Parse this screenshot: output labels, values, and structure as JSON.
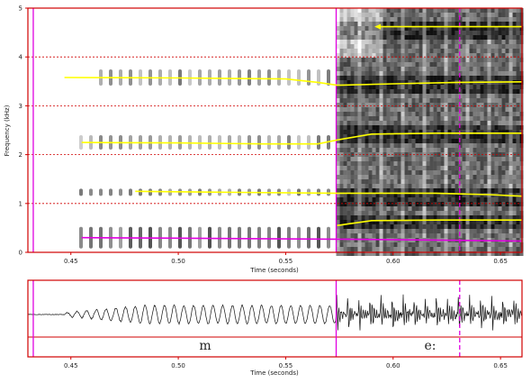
{
  "spectrogram": {
    "ylabel": "Frequency (kHz)",
    "xlabel": "Time (seconds)",
    "y_ticks": [
      "0",
      "1",
      "2",
      "3",
      "4",
      "5"
    ],
    "x_ticks": [
      "0.45",
      "0.50",
      "0.55",
      "0.60",
      "0.65"
    ]
  },
  "waveform": {
    "xlabel": "Time (seconds)",
    "x_ticks": [
      "0.45",
      "0.50",
      "0.55",
      "0.60",
      "0.65"
    ],
    "segments": [
      "m",
      "e:"
    ]
  },
  "colors": {
    "frame": "#d00000",
    "boundary": "#e000e0",
    "formant": "#ffff00",
    "f0": "#e000e0",
    "gridline": "#d00000"
  },
  "chart_data": [
    {
      "type": "line",
      "x_unit": "seconds",
      "y_unit": "kHz",
      "xlim": [
        0.43,
        0.66
      ],
      "ylim": [
        0,
        5
      ],
      "grid": true,
      "boundaries": [
        0.4325,
        0.5735,
        0.631
      ],
      "series": [
        {
          "x": [
            0.447,
            0.5,
            0.55,
            0.565,
            0.574,
            0.6,
            0.63,
            0.66
          ],
          "y": [
            3.58,
            3.57,
            3.55,
            3.48,
            3.42,
            3.45,
            3.48,
            3.49
          ]
        },
        {
          "x": [
            0.455,
            0.5,
            0.54,
            0.565,
            0.574,
            0.59,
            0.62,
            0.66
          ],
          "y": [
            2.25,
            2.24,
            2.22,
            2.22,
            2.3,
            2.42,
            2.44,
            2.44
          ]
        },
        {
          "x": [
            0.48,
            0.52,
            0.574,
            0.62,
            0.645,
            0.66
          ],
          "y": [
            1.25,
            1.23,
            1.21,
            1.21,
            1.18,
            1.15
          ]
        },
        {
          "x": [
            0.574,
            0.59,
            0.62,
            0.66
          ],
          "y": [
            0.55,
            0.65,
            0.66,
            0.66
          ]
        },
        {
          "x": [
            0.593,
            0.62,
            0.66
          ],
          "y": [
            4.62,
            4.62,
            4.62
          ]
        },
        {
          "x": [
            0.455,
            0.5,
            0.574,
            0.62,
            0.66
          ],
          "y": [
            0.3,
            0.29,
            0.27,
            0.25,
            0.23
          ]
        }
      ]
    },
    {
      "type": "line",
      "x_unit": "seconds",
      "xlim": [
        0.43,
        0.66
      ],
      "segments": [
        {
          "label": "m",
          "start": 0.4325,
          "end": 0.5735
        },
        {
          "label": "e:",
          "start": 0.5735,
          "end": 0.66
        }
      ]
    }
  ]
}
